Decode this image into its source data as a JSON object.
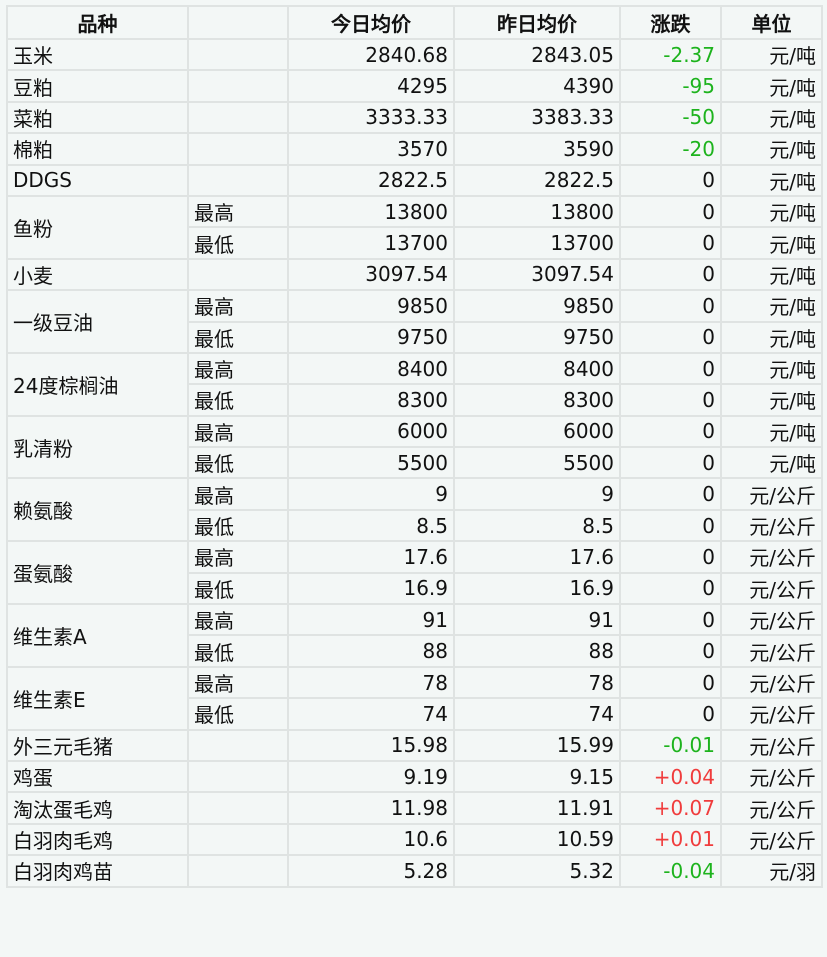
{
  "header": {
    "name": "品种",
    "sub": "",
    "today": "今日均价",
    "yesterday": "昨日均价",
    "change": "涨跌",
    "unit": "单位"
  },
  "colors": {
    "up": "#f03c3c",
    "down": "#1db31d",
    "border": "#dfe3e2",
    "background": "#f3f7f6"
  },
  "rows": [
    {
      "name": "玉米",
      "rows": [
        {
          "sub": "",
          "today": "2840.68",
          "yesterday": "2843.05",
          "change": "-2.37",
          "unit": "元/吨"
        }
      ]
    },
    {
      "name": "豆粕",
      "rows": [
        {
          "sub": "",
          "today": "4295",
          "yesterday": "4390",
          "change": "-95",
          "unit": "元/吨"
        }
      ]
    },
    {
      "name": "菜粕",
      "rows": [
        {
          "sub": "",
          "today": "3333.33",
          "yesterday": "3383.33",
          "change": "-50",
          "unit": "元/吨"
        }
      ]
    },
    {
      "name": "棉粕",
      "rows": [
        {
          "sub": "",
          "today": "3570",
          "yesterday": "3590",
          "change": "-20",
          "unit": "元/吨"
        }
      ]
    },
    {
      "name": "DDGS",
      "rows": [
        {
          "sub": "",
          "today": "2822.5",
          "yesterday": "2822.5",
          "change": "0",
          "unit": "元/吨"
        }
      ]
    },
    {
      "name": "鱼粉",
      "rows": [
        {
          "sub": "最高",
          "today": "13800",
          "yesterday": "13800",
          "change": "0",
          "unit": "元/吨"
        },
        {
          "sub": "最低",
          "today": "13700",
          "yesterday": "13700",
          "change": "0",
          "unit": "元/吨"
        }
      ]
    },
    {
      "name": "小麦",
      "rows": [
        {
          "sub": "",
          "today": "3097.54",
          "yesterday": "3097.54",
          "change": "0",
          "unit": "元/吨"
        }
      ]
    },
    {
      "name": "一级豆油",
      "rows": [
        {
          "sub": "最高",
          "today": "9850",
          "yesterday": "9850",
          "change": "0",
          "unit": "元/吨"
        },
        {
          "sub": "最低",
          "today": "9750",
          "yesterday": "9750",
          "change": "0",
          "unit": "元/吨"
        }
      ]
    },
    {
      "name": "24度棕榈油",
      "rows": [
        {
          "sub": "最高",
          "today": "8400",
          "yesterday": "8400",
          "change": "0",
          "unit": "元/吨"
        },
        {
          "sub": "最低",
          "today": "8300",
          "yesterday": "8300",
          "change": "0",
          "unit": "元/吨"
        }
      ]
    },
    {
      "name": "乳清粉",
      "rows": [
        {
          "sub": "最高",
          "today": "6000",
          "yesterday": "6000",
          "change": "0",
          "unit": "元/吨"
        },
        {
          "sub": "最低",
          "today": "5500",
          "yesterday": "5500",
          "change": "0",
          "unit": "元/吨"
        }
      ]
    },
    {
      "name": "赖氨酸",
      "rows": [
        {
          "sub": "最高",
          "today": "9",
          "yesterday": "9",
          "change": "0",
          "unit": "元/公斤"
        },
        {
          "sub": "最低",
          "today": "8.5",
          "yesterday": "8.5",
          "change": "0",
          "unit": "元/公斤"
        }
      ]
    },
    {
      "name": "蛋氨酸",
      "rows": [
        {
          "sub": "最高",
          "today": "17.6",
          "yesterday": "17.6",
          "change": "0",
          "unit": "元/公斤"
        },
        {
          "sub": "最低",
          "today": "16.9",
          "yesterday": "16.9",
          "change": "0",
          "unit": "元/公斤"
        }
      ]
    },
    {
      "name": "维生素A",
      "rows": [
        {
          "sub": "最高",
          "today": "91",
          "yesterday": "91",
          "change": "0",
          "unit": "元/公斤"
        },
        {
          "sub": "最低",
          "today": "88",
          "yesterday": "88",
          "change": "0",
          "unit": "元/公斤"
        }
      ]
    },
    {
      "name": "维生素E",
      "rows": [
        {
          "sub": "最高",
          "today": "78",
          "yesterday": "78",
          "change": "0",
          "unit": "元/公斤"
        },
        {
          "sub": "最低",
          "today": "74",
          "yesterday": "74",
          "change": "0",
          "unit": "元/公斤"
        }
      ]
    },
    {
      "name": "外三元毛猪",
      "rows": [
        {
          "sub": "",
          "today": "15.98",
          "yesterday": "15.99",
          "change": "-0.01",
          "unit": "元/公斤"
        }
      ]
    },
    {
      "name": "鸡蛋",
      "rows": [
        {
          "sub": "",
          "today": "9.19",
          "yesterday": "9.15",
          "change": "+0.04",
          "unit": "元/公斤"
        }
      ]
    },
    {
      "name": "淘汰蛋毛鸡",
      "rows": [
        {
          "sub": "",
          "today": "11.98",
          "yesterday": "11.91",
          "change": "+0.07",
          "unit": "元/公斤"
        }
      ]
    },
    {
      "name": "白羽肉毛鸡",
      "rows": [
        {
          "sub": "",
          "today": "10.6",
          "yesterday": "10.59",
          "change": "+0.01",
          "unit": "元/公斤"
        }
      ]
    },
    {
      "name": "白羽肉鸡苗",
      "rows": [
        {
          "sub": "",
          "today": "5.28",
          "yesterday": "5.32",
          "change": "-0.04",
          "unit": "元/羽"
        }
      ]
    }
  ]
}
